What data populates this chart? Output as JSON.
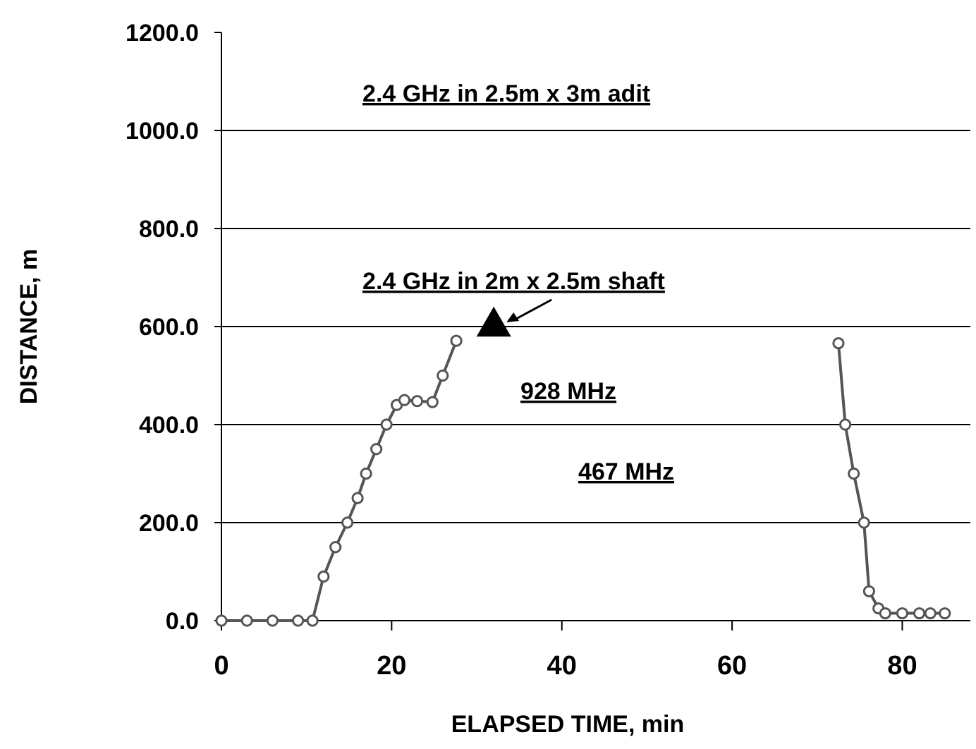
{
  "chart_data": {
    "type": "line",
    "xlabel": "ELAPSED TIME, min",
    "ylabel": "DISTANCE, m",
    "xlim": [
      0,
      88
    ],
    "xticks": [
      0,
      20,
      40,
      60,
      80
    ],
    "ylim": [
      0,
      1200
    ],
    "yticks": [
      {
        "value": 0,
        "label": "0.0"
      },
      {
        "value": 200,
        "label": "200.0"
      },
      {
        "value": 400,
        "label": "400.0"
      },
      {
        "value": 600,
        "label": "600.0"
      },
      {
        "value": 800,
        "label": "800.0"
      },
      {
        "value": 1000,
        "label": "1000.0"
      },
      {
        "value": 1200,
        "label": "1200.0"
      }
    ],
    "grid": "y",
    "marker": "circle",
    "series": [
      {
        "color": "#555555",
        "x": [
          0,
          3,
          6,
          9,
          10.7,
          12,
          13.4,
          14.8,
          16,
          17,
          18.2,
          19.4,
          20.6,
          21.5,
          23,
          24.8,
          26,
          27.6,
          50,
          72.5,
          73.3,
          74.3,
          75.5,
          76.1,
          77.2,
          78,
          80,
          82,
          83.3,
          85
        ],
        "values": [
          0,
          0,
          0,
          0,
          0,
          90,
          150,
          200,
          250,
          300,
          350,
          400,
          440,
          450,
          448,
          446,
          500,
          571,
          null,
          566,
          400,
          300,
          200,
          60,
          25,
          15,
          15,
          15,
          15,
          15
        ]
      },
      {
        "type": "scatter",
        "marker": "triangle",
        "color": "#000000",
        "x": [
          32
        ],
        "values": [
          600
        ]
      }
    ],
    "annotations": [
      "2.4 GHz in 2.5m x 3m adit",
      "2.4 GHz in 2m x 2.5m shaft",
      "928 MHz",
      "467 MHz"
    ]
  }
}
